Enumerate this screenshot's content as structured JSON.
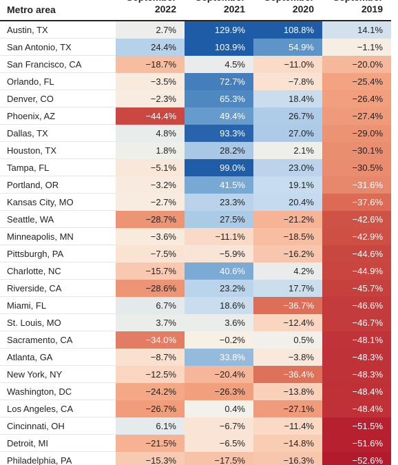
{
  "table": {
    "header": {
      "label": "Metro area",
      "columns": [
        {
          "month": "September",
          "year": "2022"
        },
        {
          "month": "September",
          "year": "2021"
        },
        {
          "month": "September",
          "year": "2020"
        },
        {
          "month": "September",
          "year": "2019"
        }
      ]
    },
    "rows": [
      [
        "Austin, TX",
        "2.7%",
        "129.9%",
        "108.8%",
        "14.1%"
      ],
      [
        "San Antonio, TX",
        "24.4%",
        "103.9%",
        "54.9%",
        "−1.1%"
      ],
      [
        "San Francisco, CA",
        "−18.7%",
        "4.5%",
        "−11.0%",
        "−20.0%"
      ],
      [
        "Orlando, FL",
        "−3.5%",
        "72.7%",
        "−7.8%",
        "−25.4%"
      ],
      [
        "Denver, CO",
        "−2.3%",
        "65.3%",
        "18.4%",
        "−26.4%"
      ],
      [
        "Phoenix, AZ",
        "−44.4%",
        "49.4%",
        "26.7%",
        "−27.4%"
      ],
      [
        "Dallas, TX",
        "4.8%",
        "93.3%",
        "27.0%",
        "−29.0%"
      ],
      [
        "Houston, TX",
        "1.8%",
        "28.2%",
        "2.1%",
        "−30.1%"
      ],
      [
        "Tampa, FL",
        "−5.1%",
        "99.0%",
        "23.0%",
        "−30.5%"
      ],
      [
        "Portland, OR",
        "−3.2%",
        "41.5%",
        "19.1%",
        "−31.6%"
      ],
      [
        "Kansas City, MO",
        "−2.7%",
        "23.3%",
        "20.4%",
        "−37.6%"
      ],
      [
        "Seattle, WA",
        "−28.7%",
        "27.5%",
        "−21.2%",
        "−42.6%"
      ],
      [
        "Minneapolis, MN",
        "−3.6%",
        "−11.1%",
        "−18.5%",
        "−42.9%"
      ],
      [
        "Pittsburgh, PA",
        "−7.5%",
        "−5.9%",
        "−16.2%",
        "−44.6%"
      ],
      [
        "Charlotte, NC",
        "−15.7%",
        "40.6%",
        "4.2%",
        "−44.9%"
      ],
      [
        "Riverside, CA",
        "−28.6%",
        "23.2%",
        "17.7%",
        "−45.7%"
      ],
      [
        "Miami, FL",
        "6.7%",
        "18.6%",
        "−36.7%",
        "−46.6%"
      ],
      [
        "St. Louis, MO",
        "3.7%",
        "3.6%",
        "−12.4%",
        "−46.7%"
      ],
      [
        "Sacramento, CA",
        "−34.0%",
        "−0.2%",
        "0.5%",
        "−48.1%"
      ],
      [
        "Atlanta, GA",
        "−8.7%",
        "33.8%",
        "−3.8%",
        "−48.3%"
      ],
      [
        "New York, NY",
        "−12.5%",
        "−20.4%",
        "−36.4%",
        "−48.3%"
      ],
      [
        "Washington, DC",
        "−24.2%",
        "−26.3%",
        "−13.8%",
        "−48.4%"
      ],
      [
        "Los Angeles, CA",
        "−26.7%",
        "0.4%",
        "−27.1%",
        "−48.4%"
      ],
      [
        "Cincinnati, OH",
        "6.1%",
        "−6.7%",
        "−11.4%",
        "−51.5%"
      ],
      [
        "Detroit, MI",
        "−21.5%",
        "−6.5%",
        "−14.8%",
        "−51.6%"
      ],
      [
        "Philadelphia, PA",
        "−15.3%",
        "−17.5%",
        "−16.3%",
        "−52.6%"
      ]
    ]
  }
}
